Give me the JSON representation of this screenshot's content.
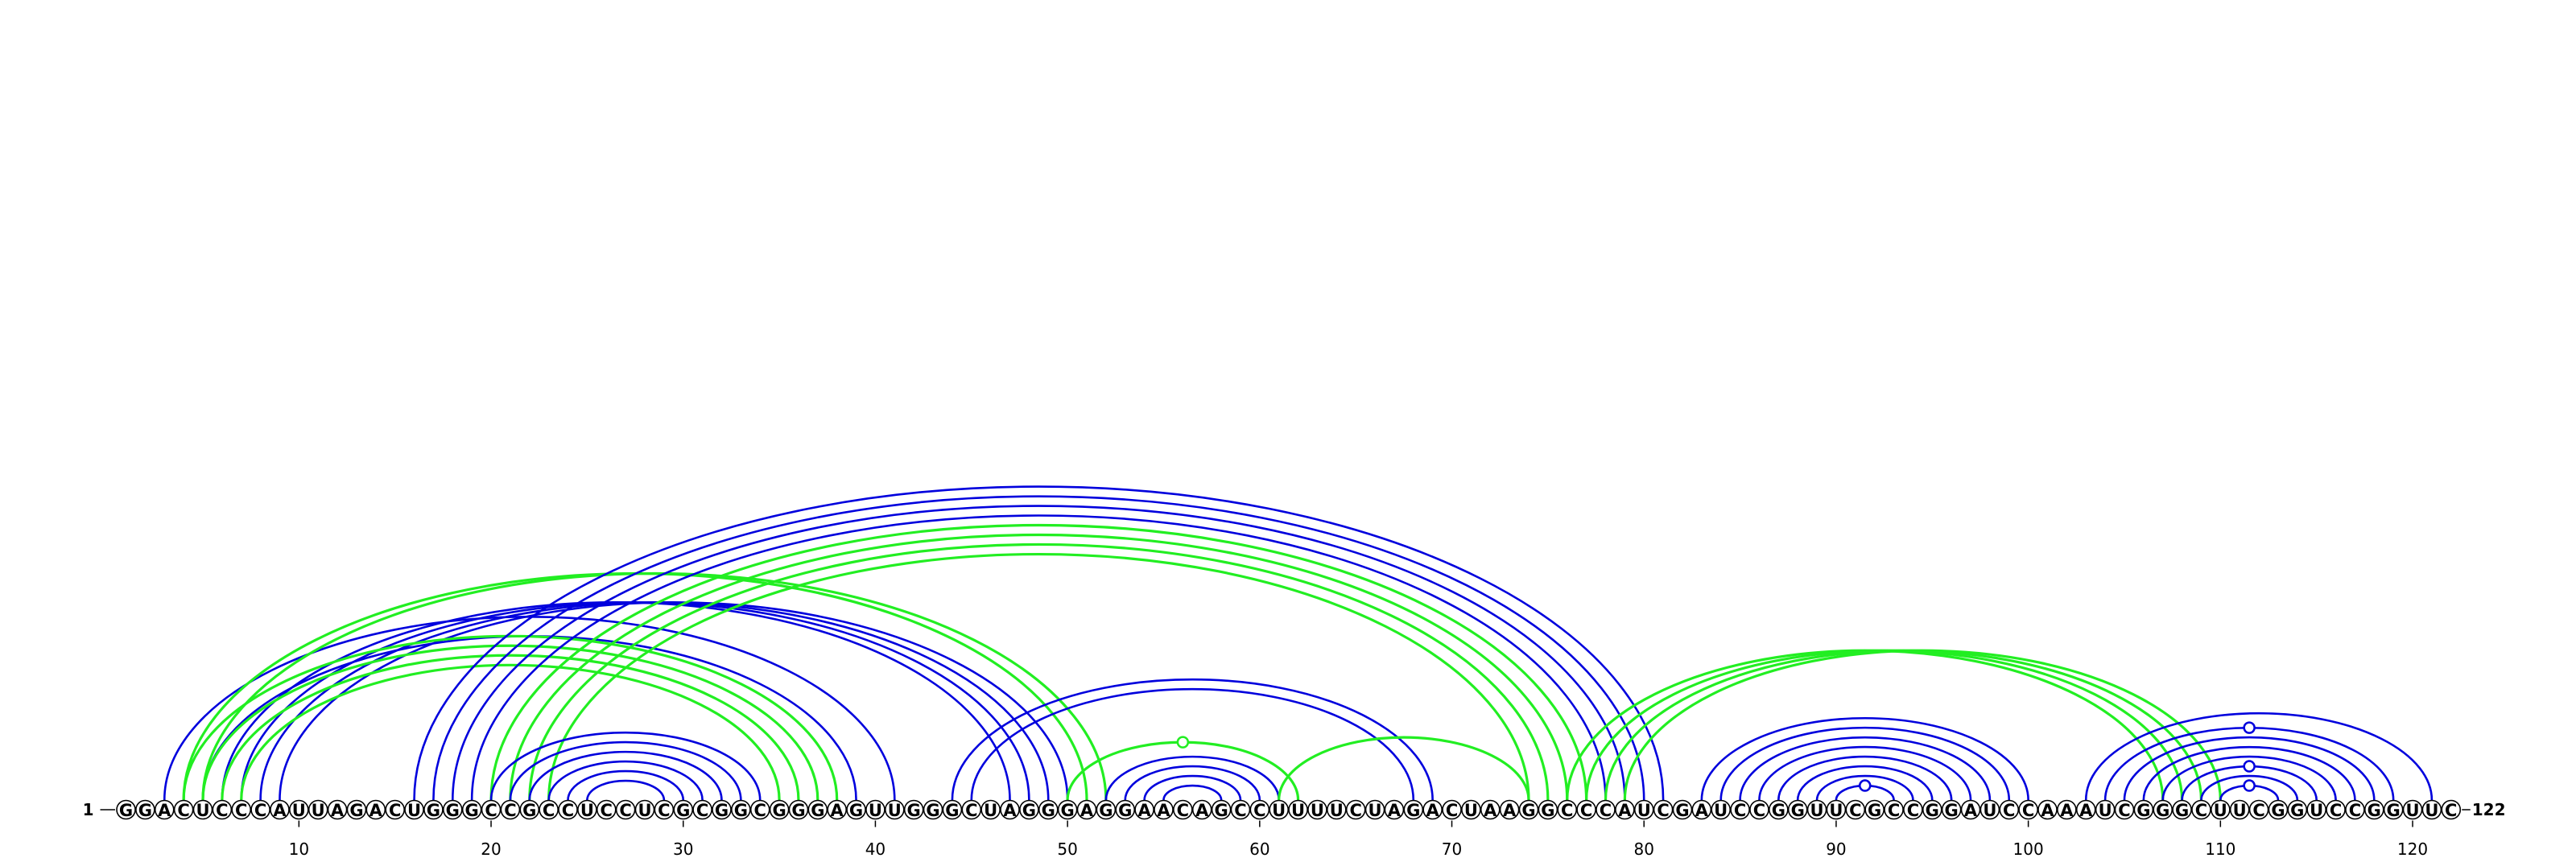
{
  "sequence": "GGACUCCCAUUAGACUGGGCCGCCUCCUCGCGGCGGGAGUUGGGCUAGGGAGGAACAGCCUUUUCUAGACUAAGGCCCAUCGAUCCGGUUCGCCGGAUCCAAAUCGGGCUUCGGUCCGGUUC",
  "start_label": "1",
  "end_label": "122",
  "ticks": [
    "10",
    "20",
    "30",
    "40",
    "50",
    "60",
    "70",
    "80",
    "90",
    "100",
    "110",
    "120"
  ],
  "colors": {
    "blue": "#0000dd",
    "green": "#22ee22",
    "text": "#000000"
  },
  "arcs": [
    {
      "c": "blue",
      "i": 3,
      "j": 41
    },
    {
      "c": "blue",
      "i": 5,
      "j": 39
    },
    {
      "c": "blue",
      "i": 6,
      "j": 47
    },
    {
      "c": "blue",
      "i": 7,
      "j": 48
    },
    {
      "c": "blue",
      "i": 8,
      "j": 49
    },
    {
      "c": "blue",
      "i": 9,
      "j": 50
    },
    {
      "c": "green",
      "i": 4,
      "j": 38
    },
    {
      "c": "green",
      "i": 5,
      "j": 37
    },
    {
      "c": "green",
      "i": 6,
      "j": 36
    },
    {
      "c": "green",
      "i": 7,
      "j": 35
    },
    {
      "c": "green",
      "i": 4,
      "j": 51
    },
    {
      "c": "green",
      "i": 5,
      "j": 52
    },
    {
      "c": "blue",
      "i": 16,
      "j": 81
    },
    {
      "c": "blue",
      "i": 17,
      "j": 80
    },
    {
      "c": "blue",
      "i": 18,
      "j": 79
    },
    {
      "c": "blue",
      "i": 19,
      "j": 78
    },
    {
      "c": "green",
      "i": 20,
      "j": 77
    },
    {
      "c": "green",
      "i": 21,
      "j": 76
    },
    {
      "c": "green",
      "i": 22,
      "j": 75
    },
    {
      "c": "green",
      "i": 23,
      "j": 74
    },
    {
      "c": "blue",
      "i": 20,
      "j": 34
    },
    {
      "c": "blue",
      "i": 21,
      "j": 33
    },
    {
      "c": "blue",
      "i": 22,
      "j": 32
    },
    {
      "c": "blue",
      "i": 23,
      "j": 31
    },
    {
      "c": "blue",
      "i": 24,
      "j": 30
    },
    {
      "c": "blue",
      "i": 25,
      "j": 29
    },
    {
      "c": "blue",
      "i": 44,
      "j": 69
    },
    {
      "c": "blue",
      "i": 45,
      "j": 68
    },
    {
      "c": "blue",
      "i": 52,
      "j": 61
    },
    {
      "c": "blue",
      "i": 53,
      "j": 60
    },
    {
      "c": "blue",
      "i": 54,
      "j": 59
    },
    {
      "c": "blue",
      "i": 55,
      "j": 58
    },
    {
      "c": "green",
      "i": 50,
      "j": 62
    },
    {
      "c": "green",
      "i": 61,
      "j": 74
    },
    {
      "c": "green",
      "i": 76,
      "j": 107
    },
    {
      "c": "green",
      "i": 77,
      "j": 108
    },
    {
      "c": "green",
      "i": 78,
      "j": 109
    },
    {
      "c": "green",
      "i": 79,
      "j": 110
    },
    {
      "c": "blue",
      "i": 83,
      "j": 100
    },
    {
      "c": "blue",
      "i": 84,
      "j": 99
    },
    {
      "c": "blue",
      "i": 85,
      "j": 98
    },
    {
      "c": "blue",
      "i": 86,
      "j": 97
    },
    {
      "c": "blue",
      "i": 87,
      "j": 96
    },
    {
      "c": "blue",
      "i": 88,
      "j": 95
    },
    {
      "c": "blue",
      "i": 89,
      "j": 94
    },
    {
      "c": "blue",
      "i": 90,
      "j": 93
    },
    {
      "c": "blue",
      "i": 103,
      "j": 121
    },
    {
      "c": "blue",
      "i": 104,
      "j": 119
    },
    {
      "c": "blue",
      "i": 105,
      "j": 118
    },
    {
      "c": "blue",
      "i": 106,
      "j": 117
    },
    {
      "c": "blue",
      "i": 107,
      "j": 116
    },
    {
      "c": "blue",
      "i": 108,
      "j": 115
    },
    {
      "c": "blue",
      "i": 109,
      "j": 114
    },
    {
      "c": "blue",
      "i": 110,
      "j": 113
    }
  ],
  "markers": [
    {
      "c": "green",
      "i": 50,
      "j": 62
    },
    {
      "c": "blue",
      "i": 90,
      "j": 93
    },
    {
      "c": "blue",
      "i": 110,
      "j": 113
    },
    {
      "c": "blue",
      "i": 108,
      "j": 115
    },
    {
      "c": "blue",
      "i": 104,
      "j": 119
    }
  ]
}
